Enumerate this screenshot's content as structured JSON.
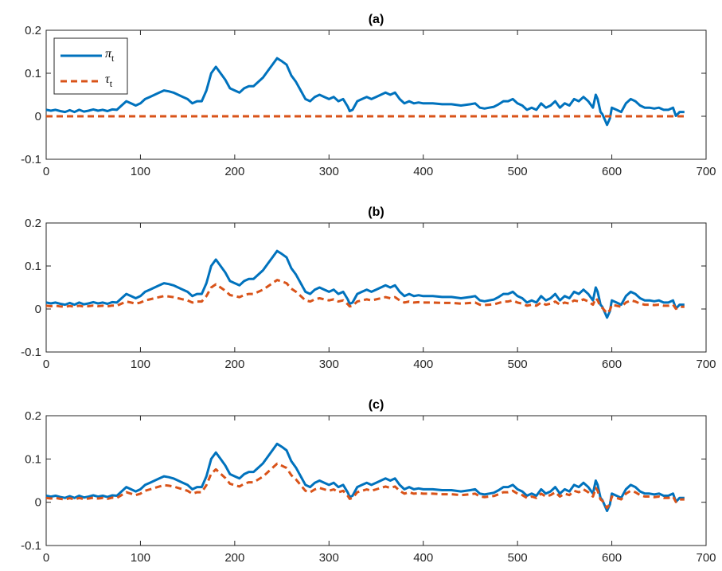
{
  "chart_data": [
    {
      "type": "line",
      "title": "(a)",
      "xlim": [
        0,
        700
      ],
      "ylim": [
        -0.1,
        0.2
      ],
      "xticks": [
        0,
        100,
        200,
        300,
        400,
        500,
        600,
        700
      ],
      "yticks": [
        -0.1,
        0,
        0.1,
        0.2
      ],
      "xtick_labels": [
        "0",
        "100",
        "200",
        "300",
        "400",
        "500",
        "600",
        "700"
      ],
      "ytick_labels": [
        "-0.1",
        "0",
        "0.1",
        "0.2"
      ],
      "grid": false,
      "legend": {
        "position": "top-left",
        "entries": [
          {
            "symbol": "π",
            "subscript": "t"
          },
          {
            "symbol": "τ",
            "subscript": "t"
          }
        ]
      },
      "series": [
        {
          "key": "pi",
          "style": "solid",
          "color": "#0072BD"
        },
        {
          "key": "tau",
          "style": "dashed",
          "color": "#D95319",
          "points": [
            [
              0,
              0
            ],
            [
              677,
              0
            ]
          ]
        }
      ]
    },
    {
      "type": "line",
      "title": "(b)",
      "xlim": [
        0,
        700
      ],
      "ylim": [
        -0.1,
        0.2
      ],
      "xticks": [
        0,
        100,
        200,
        300,
        400,
        500,
        600,
        700
      ],
      "yticks": [
        -0.1,
        0,
        0.1,
        0.2
      ],
      "xtick_labels": [
        "0",
        "100",
        "200",
        "300",
        "400",
        "500",
        "600",
        "700"
      ],
      "ytick_labels": [
        "-0.1",
        "0",
        "0.1",
        "0.2"
      ],
      "grid": false,
      "series": [
        {
          "key": "pi",
          "style": "solid",
          "color": "#0072BD"
        },
        {
          "key": "tau",
          "style": "dashed",
          "color": "#D95319",
          "derived_from": "pi",
          "scale": 0.5
        }
      ]
    },
    {
      "type": "line",
      "title": "(c)",
      "xlim": [
        0,
        700
      ],
      "ylim": [
        -0.1,
        0.2
      ],
      "xticks": [
        0,
        100,
        200,
        300,
        400,
        500,
        600,
        700
      ],
      "yticks": [
        -0.1,
        0,
        0.1,
        0.2
      ],
      "xtick_labels": [
        "0",
        "100",
        "200",
        "300",
        "400",
        "500",
        "600",
        "700"
      ],
      "ytick_labels": [
        "-0.1",
        "0",
        "0.1",
        "0.2"
      ],
      "grid": false,
      "series": [
        {
          "key": "pi",
          "style": "solid",
          "color": "#0072BD"
        },
        {
          "key": "tau",
          "style": "dashed",
          "color": "#D95319",
          "derived_from": "pi",
          "scale": 0.66
        }
      ]
    }
  ],
  "pi_points": [
    [
      0,
      0.015
    ],
    [
      5,
      0.013
    ],
    [
      10,
      0.015
    ],
    [
      15,
      0.012
    ],
    [
      20,
      0.01
    ],
    [
      25,
      0.014
    ],
    [
      30,
      0.01
    ],
    [
      35,
      0.015
    ],
    [
      40,
      0.011
    ],
    [
      45,
      0.013
    ],
    [
      50,
      0.016
    ],
    [
      55,
      0.013
    ],
    [
      60,
      0.015
    ],
    [
      65,
      0.012
    ],
    [
      70,
      0.016
    ],
    [
      75,
      0.015
    ],
    [
      80,
      0.025
    ],
    [
      85,
      0.035
    ],
    [
      90,
      0.03
    ],
    [
      95,
      0.025
    ],
    [
      100,
      0.03
    ],
    [
      105,
      0.04
    ],
    [
      110,
      0.045
    ],
    [
      115,
      0.05
    ],
    [
      120,
      0.055
    ],
    [
      125,
      0.06
    ],
    [
      130,
      0.058
    ],
    [
      135,
      0.055
    ],
    [
      140,
      0.05
    ],
    [
      145,
      0.045
    ],
    [
      150,
      0.04
    ],
    [
      155,
      0.03
    ],
    [
      160,
      0.035
    ],
    [
      165,
      0.035
    ],
    [
      170,
      0.06
    ],
    [
      175,
      0.1
    ],
    [
      180,
      0.115
    ],
    [
      185,
      0.1
    ],
    [
      190,
      0.085
    ],
    [
      195,
      0.065
    ],
    [
      200,
      0.06
    ],
    [
      205,
      0.055
    ],
    [
      210,
      0.065
    ],
    [
      215,
      0.07
    ],
    [
      220,
      0.07
    ],
    [
      225,
      0.08
    ],
    [
      230,
      0.09
    ],
    [
      235,
      0.105
    ],
    [
      240,
      0.12
    ],
    [
      245,
      0.135
    ],
    [
      250,
      0.128
    ],
    [
      255,
      0.12
    ],
    [
      260,
      0.095
    ],
    [
      265,
      0.08
    ],
    [
      270,
      0.06
    ],
    [
      275,
      0.04
    ],
    [
      280,
      0.035
    ],
    [
      285,
      0.045
    ],
    [
      290,
      0.05
    ],
    [
      295,
      0.045
    ],
    [
      300,
      0.04
    ],
    [
      305,
      0.045
    ],
    [
      310,
      0.035
    ],
    [
      315,
      0.04
    ],
    [
      320,
      0.022
    ],
    [
      322,
      0.012
    ],
    [
      325,
      0.015
    ],
    [
      330,
      0.035
    ],
    [
      335,
      0.04
    ],
    [
      340,
      0.045
    ],
    [
      345,
      0.04
    ],
    [
      350,
      0.045
    ],
    [
      355,
      0.05
    ],
    [
      360,
      0.055
    ],
    [
      365,
      0.05
    ],
    [
      370,
      0.055
    ],
    [
      375,
      0.04
    ],
    [
      380,
      0.03
    ],
    [
      385,
      0.035
    ],
    [
      390,
      0.03
    ],
    [
      395,
      0.032
    ],
    [
      400,
      0.03
    ],
    [
      410,
      0.03
    ],
    [
      420,
      0.028
    ],
    [
      430,
      0.028
    ],
    [
      440,
      0.025
    ],
    [
      450,
      0.028
    ],
    [
      455,
      0.03
    ],
    [
      460,
      0.02
    ],
    [
      465,
      0.018
    ],
    [
      470,
      0.02
    ],
    [
      475,
      0.022
    ],
    [
      480,
      0.028
    ],
    [
      485,
      0.035
    ],
    [
      490,
      0.035
    ],
    [
      495,
      0.04
    ],
    [
      500,
      0.03
    ],
    [
      505,
      0.025
    ],
    [
      510,
      0.015
    ],
    [
      515,
      0.02
    ],
    [
      520,
      0.015
    ],
    [
      525,
      0.03
    ],
    [
      530,
      0.02
    ],
    [
      535,
      0.025
    ],
    [
      540,
      0.035
    ],
    [
      545,
      0.02
    ],
    [
      550,
      0.03
    ],
    [
      555,
      0.025
    ],
    [
      560,
      0.04
    ],
    [
      565,
      0.035
    ],
    [
      570,
      0.045
    ],
    [
      575,
      0.035
    ],
    [
      580,
      0.02
    ],
    [
      583,
      0.05
    ],
    [
      585,
      0.04
    ],
    [
      588,
      0.01
    ],
    [
      590,
      0.005
    ],
    [
      593,
      -0.01
    ],
    [
      595,
      -0.02
    ],
    [
      598,
      -0.005
    ],
    [
      600,
      0.02
    ],
    [
      605,
      0.015
    ],
    [
      610,
      0.01
    ],
    [
      615,
      0.03
    ],
    [
      620,
      0.04
    ],
    [
      625,
      0.035
    ],
    [
      630,
      0.025
    ],
    [
      635,
      0.02
    ],
    [
      640,
      0.02
    ],
    [
      645,
      0.018
    ],
    [
      650,
      0.02
    ],
    [
      655,
      0.015
    ],
    [
      660,
      0.015
    ],
    [
      665,
      0.02
    ],
    [
      668,
      0.001
    ],
    [
      672,
      0.01
    ],
    [
      677,
      0.01
    ]
  ]
}
